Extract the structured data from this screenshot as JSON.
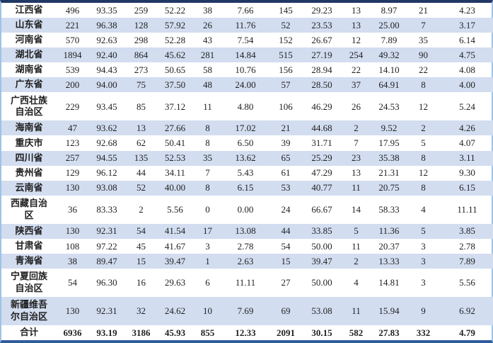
{
  "colors": {
    "stripe_row_bg": "#D2DDF0",
    "top_border": "#1F3864",
    "bottom_border": "#2F5C9C",
    "side_border": "#9DC3E6",
    "text": "#1F1F1F"
  },
  "table": {
    "rows": [
      {
        "name": "江西省",
        "values": [
          "496",
          "93.35",
          "259",
          "52.22",
          "38",
          "7.66",
          "145",
          "29.23",
          "13",
          "8.97",
          "21",
          "4.23"
        ],
        "is_total": false
      },
      {
        "name": "山东省",
        "values": [
          "221",
          "96.38",
          "128",
          "57.92",
          "26",
          "11.76",
          "52",
          "23.53",
          "13",
          "25.00",
          "7",
          "3.17"
        ],
        "is_total": false
      },
      {
        "name": "河南省",
        "values": [
          "570",
          "92.63",
          "298",
          "52.28",
          "43",
          "7.54",
          "152",
          "26.67",
          "12",
          "7.89",
          "35",
          "6.14"
        ],
        "is_total": false
      },
      {
        "name": "湖北省",
        "values": [
          "1894",
          "92.40",
          "864",
          "45.62",
          "281",
          "14.84",
          "515",
          "27.19",
          "254",
          "49.32",
          "90",
          "4.75"
        ],
        "is_total": false
      },
      {
        "name": "湖南省",
        "values": [
          "539",
          "94.43",
          "273",
          "50.65",
          "58",
          "10.76",
          "156",
          "28.94",
          "22",
          "14.10",
          "22",
          "4.08"
        ],
        "is_total": false
      },
      {
        "name": "广东省",
        "values": [
          "200",
          "94.00",
          "75",
          "37.50",
          "48",
          "24.00",
          "57",
          "28.50",
          "37",
          "64.91",
          "8",
          "4.00"
        ],
        "is_total": false
      },
      {
        "name": "广西壮族\n自治区",
        "values": [
          "229",
          "93.45",
          "85",
          "37.12",
          "11",
          "4.80",
          "106",
          "46.29",
          "26",
          "24.53",
          "12",
          "5.24"
        ],
        "is_total": false
      },
      {
        "name": "海南省",
        "values": [
          "47",
          "93.62",
          "13",
          "27.66",
          "8",
          "17.02",
          "21",
          "44.68",
          "2",
          "9.52",
          "2",
          "4.26"
        ],
        "is_total": false
      },
      {
        "name": "重庆市",
        "values": [
          "123",
          "92.68",
          "62",
          "50.41",
          "8",
          "6.50",
          "39",
          "31.71",
          "7",
          "17.95",
          "5",
          "4.07"
        ],
        "is_total": false
      },
      {
        "name": "四川省",
        "values": [
          "257",
          "94.55",
          "135",
          "52.53",
          "35",
          "13.62",
          "65",
          "25.29",
          "23",
          "35.38",
          "8",
          "3.11"
        ],
        "is_total": false
      },
      {
        "name": "贵州省",
        "values": [
          "129",
          "96.12",
          "44",
          "34.11",
          "7",
          "5.43",
          "61",
          "47.29",
          "13",
          "21.31",
          "12",
          "9.30"
        ],
        "is_total": false
      },
      {
        "name": "云南省",
        "values": [
          "130",
          "93.08",
          "52",
          "40.00",
          "8",
          "6.15",
          "53",
          "40.77",
          "11",
          "20.75",
          "8",
          "6.15"
        ],
        "is_total": false
      },
      {
        "name": "西藏自治\n区",
        "values": [
          "36",
          "83.33",
          "2",
          "5.56",
          "0",
          "0.00",
          "24",
          "66.67",
          "14",
          "58.33",
          "4",
          "11.11"
        ],
        "is_total": false
      },
      {
        "name": "陕西省",
        "values": [
          "130",
          "92.31",
          "54",
          "41.54",
          "17",
          "13.08",
          "44",
          "33.85",
          "5",
          "11.36",
          "5",
          "3.85"
        ],
        "is_total": false
      },
      {
        "name": "甘肃省",
        "values": [
          "108",
          "97.22",
          "45",
          "41.67",
          "3",
          "2.78",
          "54",
          "50.00",
          "11",
          "20.37",
          "3",
          "2.78"
        ],
        "is_total": false
      },
      {
        "name": "青海省",
        "values": [
          "38",
          "89.47",
          "15",
          "39.47",
          "1",
          "2.63",
          "15",
          "39.47",
          "2",
          "13.33",
          "3",
          "7.89"
        ],
        "is_total": false
      },
      {
        "name": "宁夏回族\n自治区",
        "values": [
          "54",
          "96.30",
          "16",
          "29.63",
          "6",
          "11.11",
          "27",
          "50.00",
          "4",
          "14.81",
          "3",
          "5.56"
        ],
        "is_total": false
      },
      {
        "name": "新疆维吾\n尔自治区",
        "values": [
          "130",
          "92.31",
          "32",
          "24.62",
          "10",
          "7.69",
          "69",
          "53.08",
          "11",
          "15.94",
          "9",
          "6.92"
        ],
        "is_total": false
      },
      {
        "name": "合计",
        "values": [
          "6936",
          "93.19",
          "3186",
          "45.93",
          "855",
          "12.33",
          "2091",
          "30.15",
          "582",
          "27.83",
          "332",
          "4.79"
        ],
        "is_total": true
      }
    ]
  }
}
